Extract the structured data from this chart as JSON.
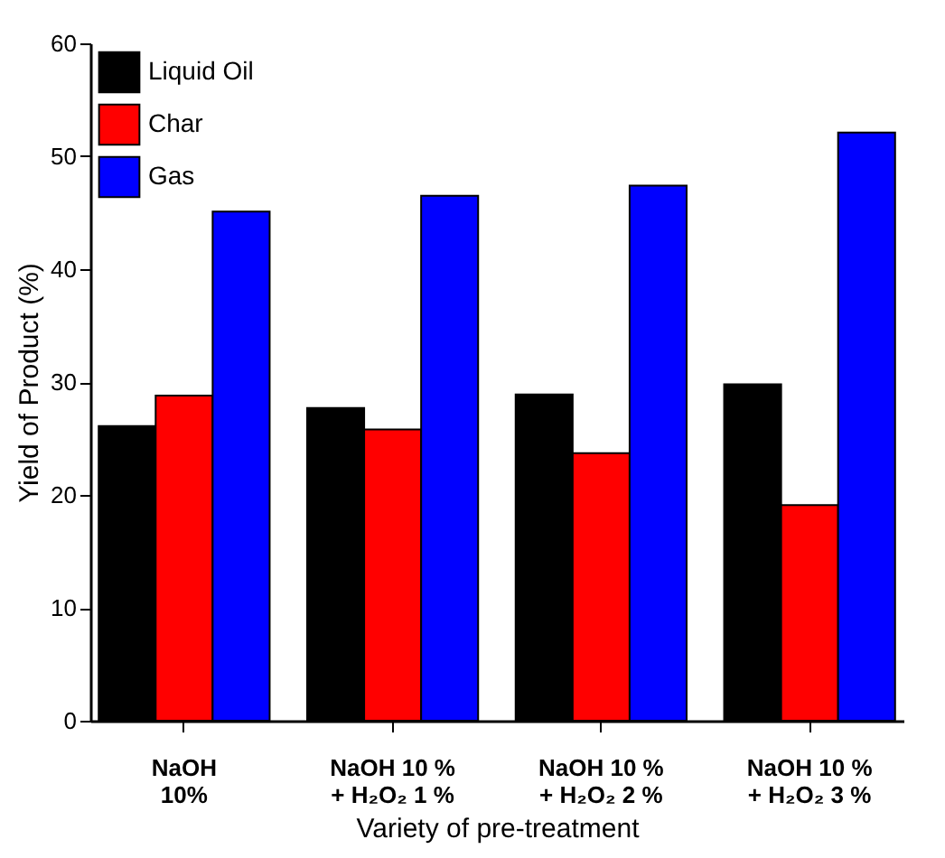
{
  "chart_data": {
    "type": "bar",
    "xlabel": "Variety of pre-treatment",
    "ylabel": "Yield of Product (%)",
    "categories": [
      "NaOH 10%",
      "NaOH 10 % + H₂O₂ 1 %",
      "NaOH 10 % + H₂O₂ 2 %",
      "NaOH 10 % + H₂O₂ 3 %"
    ],
    "series": [
      {
        "name": "Liquid Oil",
        "color": "#000000",
        "values": [
          26.1,
          27.7,
          28.9,
          29.8
        ]
      },
      {
        "name": "Char",
        "color": "#ff0000",
        "values": [
          28.8,
          25.8,
          23.7,
          19.1
        ]
      },
      {
        "name": "Gas",
        "color": "#0000ff",
        "values": [
          45.1,
          46.5,
          47.4,
          52.1
        ]
      }
    ],
    "ylim": [
      0,
      60
    ],
    "yticks": [
      0,
      10,
      20,
      30,
      40,
      50,
      60
    ],
    "grid": false,
    "legend": "top left"
  }
}
